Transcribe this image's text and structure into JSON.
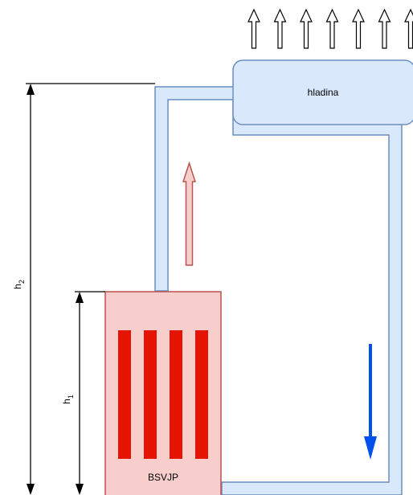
{
  "labels": {
    "surface": "hladina",
    "core": "BSVJP",
    "h2": {
      "main": "h",
      "sub": "2"
    },
    "h1": {
      "main": "h",
      "sub": "1"
    }
  },
  "colors": {
    "pipe_fill": "#dae8fc",
    "pipe_stroke": "#6c8ebf",
    "core_fill": "#f8cecc",
    "core_stroke": "#b85450",
    "fuel_rod": "#e51400",
    "hot_arrow_fill": "#f8cecc",
    "hot_arrow_stroke": "#b85450",
    "cold_arrow": "#0050ef",
    "vent_arrow_fill": "#ffffff",
    "vent_arrow_stroke": "#000000",
    "dimension_line": "#000000"
  },
  "icons": {
    "vent_arrows": "up-arrow-icon",
    "hot_flow": "up-arrow-icon",
    "cold_flow": "down-arrow-icon"
  },
  "counts": {
    "vent_arrows": 7,
    "fuel_rods": 4
  }
}
